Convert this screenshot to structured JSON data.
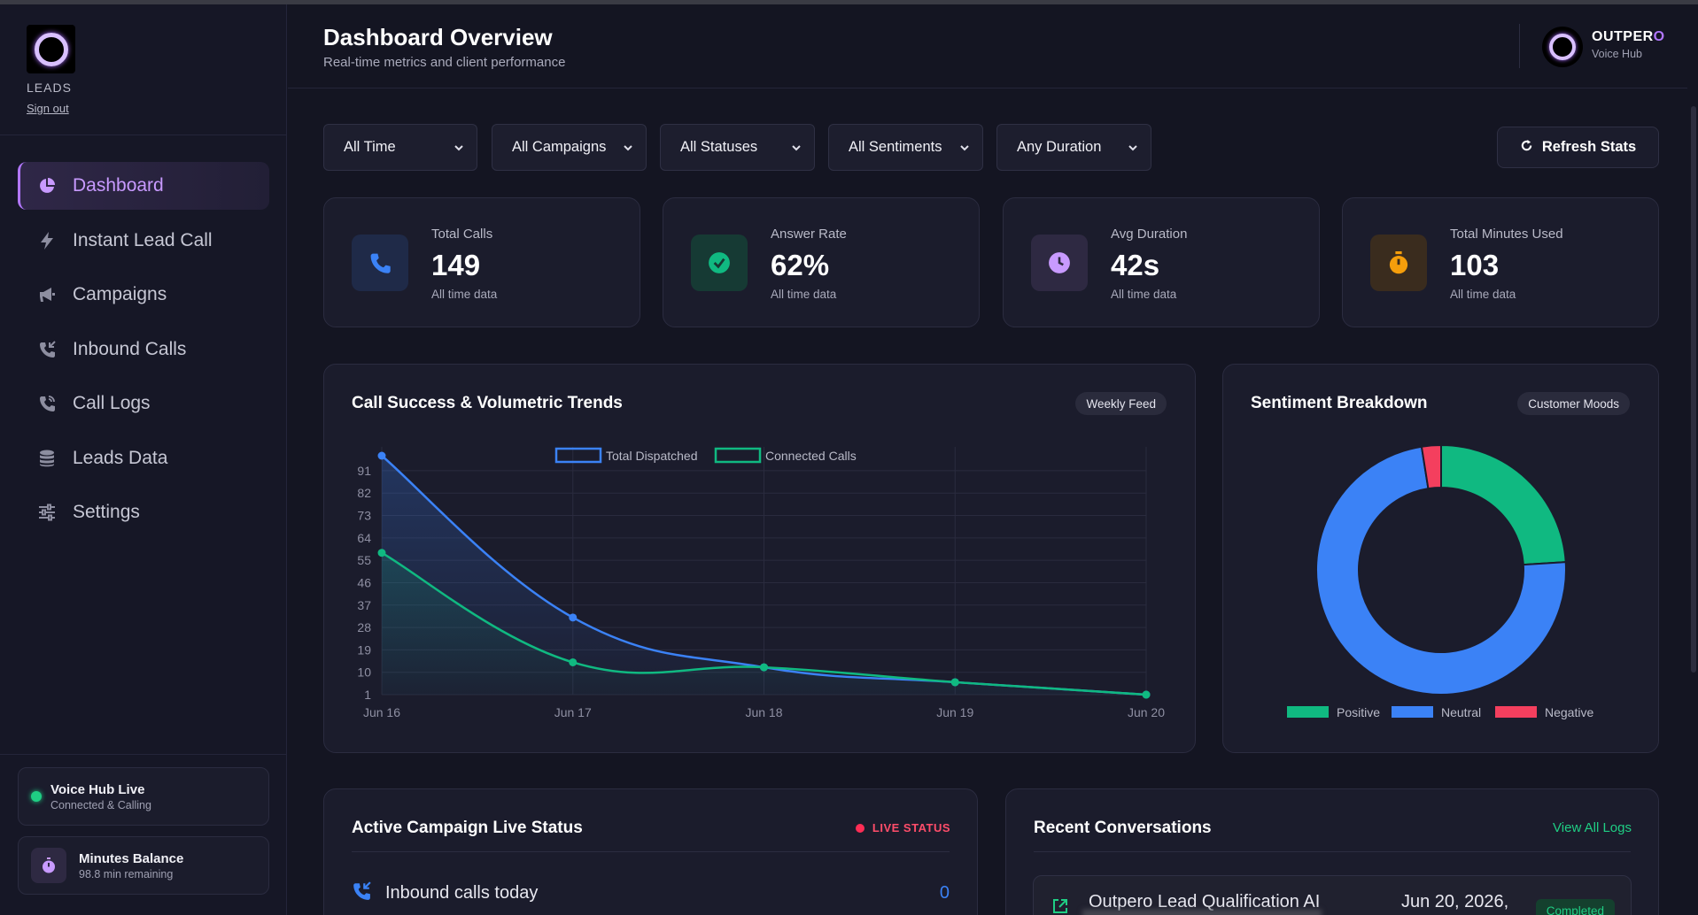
{
  "sidebar": {
    "brand": "LEADS",
    "signout": "Sign out",
    "nav": [
      {
        "label": "Dashboard",
        "icon": "pie-chart-icon"
      },
      {
        "label": "Instant Lead Call",
        "icon": "bolt-icon"
      },
      {
        "label": "Campaigns",
        "icon": "megaphone-icon"
      },
      {
        "label": "Inbound Calls",
        "icon": "phone-incoming-icon"
      },
      {
        "label": "Call Logs",
        "icon": "phone-log-icon"
      },
      {
        "label": "Leads Data",
        "icon": "database-icon"
      },
      {
        "label": "Settings",
        "icon": "sliders-icon"
      }
    ],
    "status": {
      "title": "Voice Hub Live",
      "sub": "Connected & Calling"
    },
    "minutes": {
      "title": "Minutes Balance",
      "sub": "98.8 min remaining"
    }
  },
  "header": {
    "title": "Dashboard Overview",
    "subtitle": "Real-time metrics and client performance",
    "hub_name_main": "OUTPER",
    "hub_name_accent": "O",
    "hub_sub": "Voice Hub"
  },
  "filters": [
    "All Time",
    "All Campaigns",
    "All Statuses",
    "All Sentiments",
    "Any Duration"
  ],
  "refresh_label": "Refresh Stats",
  "stats": [
    {
      "label": "Total Calls",
      "value": "149",
      "note": "All time data",
      "icon": "phone-icon",
      "color": "#3b82f6"
    },
    {
      "label": "Answer Rate",
      "value": "62%",
      "note": "All time data",
      "icon": "check-circle-icon",
      "color": "#1fce84"
    },
    {
      "label": "Avg Duration",
      "value": "42s",
      "note": "All time data",
      "icon": "clock-icon",
      "color": "#c89aff"
    },
    {
      "label": "Total Minutes Used",
      "value": "103",
      "note": "All time data",
      "icon": "stopwatch-icon",
      "color": "#f59e0b"
    }
  ],
  "trend": {
    "title": "Call Success & Volumetric Trends",
    "chip": "Weekly Feed"
  },
  "sentiment": {
    "title": "Sentiment Breakdown",
    "chip": "Customer Moods"
  },
  "live": {
    "title": "Active Campaign Live Status",
    "badge": "LIVE STATUS",
    "row_label": "Inbound calls today",
    "row_value": "0"
  },
  "recent": {
    "title": "Recent Conversations",
    "view_all": "View All Logs",
    "item_title": "Outpero Lead Qualification AI",
    "item_date": "Jun 20, 2026,",
    "item_status": "Completed"
  },
  "chart_data": [
    {
      "type": "line",
      "x": [
        "Jun 16",
        "Jun 17",
        "Jun 18",
        "Jun 19",
        "Jun 20"
      ],
      "yticks": [
        1,
        10,
        19,
        28,
        37,
        46,
        55,
        64,
        73,
        82,
        91
      ],
      "ylim": [
        1,
        97
      ],
      "series": [
        {
          "name": "Total Dispatched",
          "values": [
            97,
            32,
            12,
            6,
            1
          ],
          "color": "#3b82f6"
        },
        {
          "name": "Connected Calls",
          "values": [
            58,
            14,
            12,
            6,
            1
          ],
          "color": "#10b981"
        }
      ],
      "legend": "top-center",
      "grid": true
    },
    {
      "type": "pie",
      "donut": true,
      "labels": [
        "Positive",
        "Neutral",
        "Negative"
      ],
      "values": [
        24,
        73.5,
        2.5
      ],
      "colors": [
        "#10b981",
        "#3b82f6",
        "#f43f5e"
      ],
      "legend": "bottom"
    }
  ]
}
